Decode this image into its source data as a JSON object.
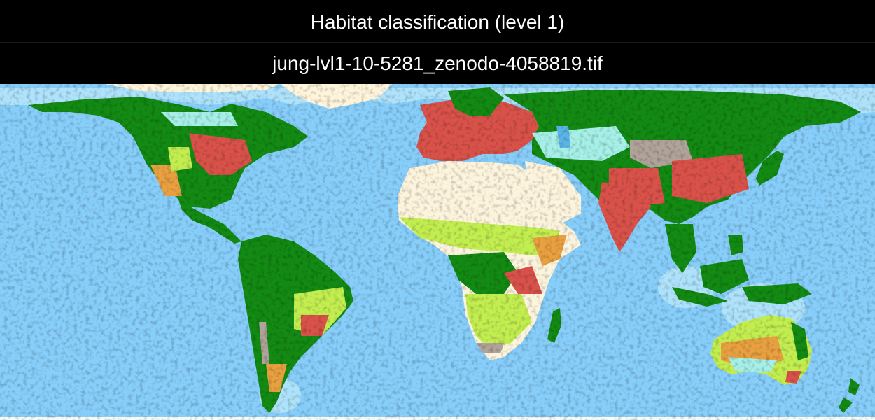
{
  "header": {
    "title": "Habitat classification (level 1)",
    "subtitle": "jung-lvl1-10-5281_zenodo-4058819.tif"
  },
  "map": {
    "projection": "equirectangular",
    "colors": {
      "ocean": "#87cefa",
      "shelf": "#aee3fb",
      "ice": "#fff5dc",
      "forest": "#138a13",
      "savanna": "#c3ee50",
      "shrubland": "#e8a040",
      "grassland": "#a6f0e8",
      "artificial": "#d9524a",
      "rocky": "#b0a39a",
      "desert": "#fdf4dd",
      "wetland": "#5ab4e8"
    }
  }
}
